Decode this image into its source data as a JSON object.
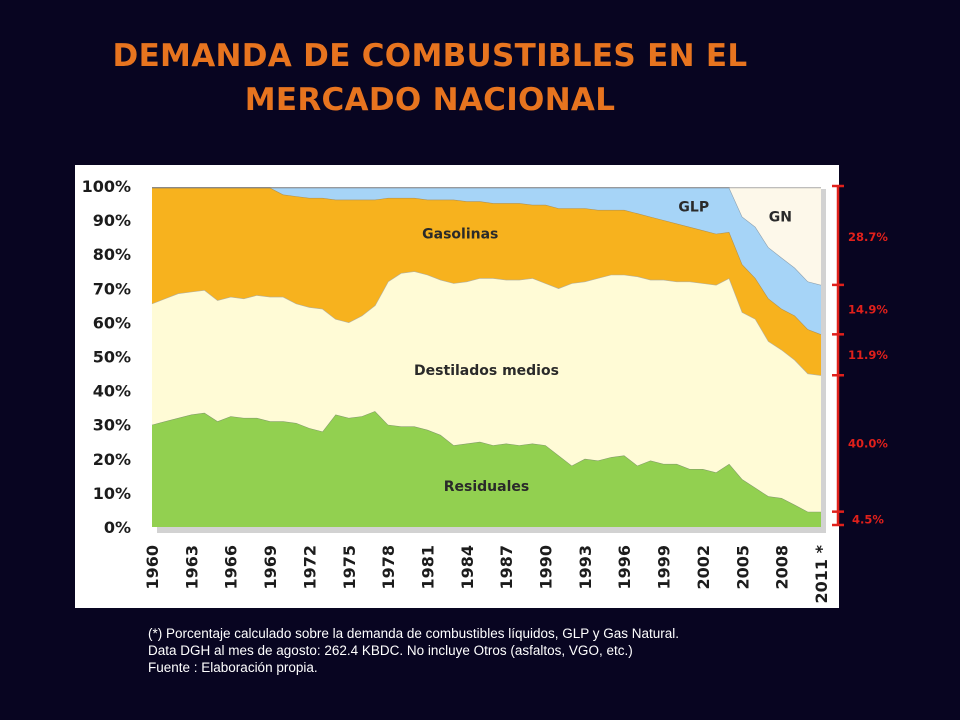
{
  "title_lines": [
    "DEMANDA DE COMBUSTIBLES EN EL",
    "MERCADO NACIONAL"
  ],
  "footnotes": [
    "(*) Porcentaje calculado sobre la demanda de combustibles líquidos, GLP y Gas Natural.",
    "Data DGH al mes de agosto:  262.4 KBDC. No incluye Otros (asfaltos, VGO, etc.)",
    "Fuente : Elaboración propia."
  ],
  "colors": {
    "background": "#080521",
    "title": "#e7741f",
    "residuales": "#92d050",
    "destilados": "#fffbd6",
    "gasolinas": "#f7b21e",
    "glp": "#a6d4f7",
    "gn": "#fdf8ea",
    "bracket": "#e0201b"
  },
  "chart_data": {
    "type": "area",
    "stacked": "percent",
    "x_tick_labels": [
      "1960",
      "1963",
      "1966",
      "1969",
      "1972",
      "1975",
      "1978",
      "1981",
      "1984",
      "1987",
      "1990",
      "1993",
      "1996",
      "1999",
      "2002",
      "2005",
      "2008",
      "2011 *"
    ],
    "y_tick_labels": [
      "0%",
      "10%",
      "20%",
      "30%",
      "40%",
      "50%",
      "60%",
      "70%",
      "80%",
      "90%",
      "100%"
    ],
    "ylim": [
      0,
      100
    ],
    "x": [
      1960,
      1961,
      1962,
      1963,
      1964,
      1965,
      1966,
      1967,
      1968,
      1969,
      1970,
      1971,
      1972,
      1973,
      1974,
      1975,
      1976,
      1977,
      1978,
      1979,
      1980,
      1981,
      1982,
      1983,
      1984,
      1985,
      1986,
      1987,
      1988,
      1989,
      1990,
      1991,
      1992,
      1993,
      1994,
      1995,
      1996,
      1997,
      1998,
      1999,
      2000,
      2001,
      2002,
      2003,
      2004,
      2005,
      2006,
      2007,
      2008,
      2009,
      2010,
      2011
    ],
    "cumulative_upper_bounds": {
      "Residuales": [
        30,
        31,
        32,
        33,
        33.5,
        31,
        32.5,
        32,
        32,
        31,
        31,
        30.5,
        29,
        28,
        33,
        32,
        32.5,
        34,
        30,
        29.5,
        29.5,
        28.5,
        27,
        24,
        24.5,
        25,
        24,
        24.5,
        24,
        24.5,
        24,
        21,
        18,
        20,
        19.5,
        20.5,
        21,
        18,
        19.5,
        18.5,
        18.5,
        17,
        17,
        16,
        18.5,
        14,
        11.5,
        9,
        8.5,
        6.5,
        4.5,
        4.5
      ],
      "Destilados medios": [
        65.5,
        67,
        68.5,
        69,
        69.5,
        66.5,
        67.5,
        67,
        68,
        67.5,
        67.5,
        65.5,
        64.5,
        64,
        61,
        60,
        62,
        65,
        72,
        74.5,
        75,
        74,
        72.5,
        71.5,
        72,
        73,
        73,
        72.5,
        72.5,
        73,
        71.5,
        70,
        71.5,
        72,
        73,
        74,
        74,
        73.5,
        72.5,
        72.5,
        72,
        72,
        71.5,
        71,
        73,
        63,
        61,
        54.5,
        52,
        49,
        45,
        44.5
      ],
      "Gasolinas": [
        99.5,
        99.5,
        99.5,
        99.5,
        99.5,
        99.5,
        99.5,
        99.5,
        99.5,
        99.5,
        97.5,
        97,
        96.5,
        96.5,
        96,
        96,
        96,
        96,
        96.5,
        96.5,
        96.5,
        96,
        96,
        96,
        95.5,
        95.5,
        95,
        95,
        95,
        94.5,
        94.5,
        93.5,
        93.5,
        93.5,
        93,
        93,
        93,
        92,
        91,
        90,
        89,
        88,
        87,
        86,
        86.5,
        77,
        73,
        67,
        64,
        62,
        58,
        56.5
      ],
      "GLP": [
        99.5,
        99.5,
        99.5,
        99.5,
        99.5,
        99.5,
        99.5,
        99.5,
        99.5,
        99.5,
        99.5,
        99.5,
        99.5,
        99.5,
        99.5,
        99.5,
        99.5,
        99.5,
        99.5,
        99.5,
        99.5,
        99.5,
        99.5,
        99.5,
        99.5,
        99.5,
        99.5,
        99.5,
        99.5,
        99.5,
        99.5,
        99.5,
        99.5,
        99.5,
        99.5,
        99.5,
        99.5,
        99.5,
        99.5,
        99.5,
        99.5,
        99.5,
        99.5,
        99.5,
        99.5,
        91,
        88,
        82,
        79,
        76,
        72,
        71
      ],
      "GN": [
        99.5,
        99.5,
        99.5,
        99.5,
        99.5,
        99.5,
        99.5,
        99.5,
        99.5,
        99.5,
        99.5,
        99.5,
        99.5,
        99.5,
        99.5,
        99.5,
        99.5,
        99.5,
        99.5,
        99.5,
        99.5,
        99.5,
        99.5,
        99.5,
        99.5,
        99.5,
        99.5,
        99.5,
        99.5,
        99.5,
        99.5,
        99.5,
        99.5,
        99.5,
        99.5,
        99.5,
        99.5,
        99.5,
        99.5,
        99.5,
        99.5,
        99.5,
        99.5,
        99.5,
        99.5,
        99.5,
        99.5,
        99.5,
        99.5,
        99.5,
        99.5,
        99.5
      ]
    },
    "series_labels": [
      {
        "text": "Gasolinas",
        "x": 1983.5,
        "y": 86
      },
      {
        "text": "Destilados medios",
        "x": 1985.5,
        "y": 46
      },
      {
        "text": "Residuales",
        "x": 1985.5,
        "y": 12
      },
      {
        "text": "GLP",
        "x": 2001.3,
        "y": 94
      },
      {
        "text": "GN",
        "x": 2007.9,
        "y": 91
      }
    ],
    "share_2011": [
      {
        "label": "28.7%",
        "from": 71,
        "to": 99.5
      },
      {
        "label": "14.9%",
        "from": 56.5,
        "to": 71
      },
      {
        "label": "11.9%",
        "from": 44.5,
        "to": 56.5
      },
      {
        "label": "40.0%",
        "from": 4.5,
        "to": 44.5
      },
      {
        "label": "4.5%",
        "from": 0,
        "to": 4.5
      }
    ],
    "grid": false,
    "legend": "none"
  }
}
